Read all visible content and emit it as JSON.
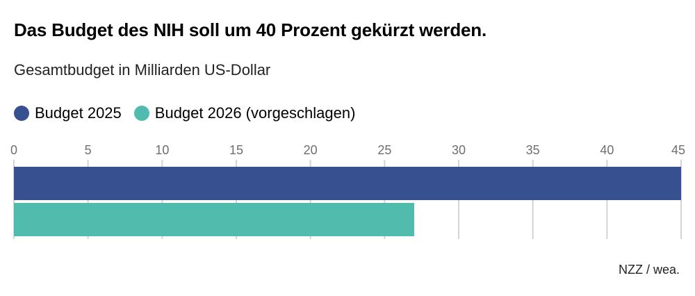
{
  "title": "Das Budget des NIH soll um 40 Prozent gekürzt werden.",
  "subtitle": "Gesamtbudget in Milliarden US-Dollar",
  "source": "NZZ / wea.",
  "chart_data": {
    "type": "bar",
    "orientation": "horizontal",
    "series": [
      {
        "name": "Budget 2025",
        "values": [
          45
        ],
        "color": "#37508f"
      },
      {
        "name": "Budget 2026 (vorgeschlagen)",
        "values": [
          27
        ],
        "color": "#51bcae"
      }
    ],
    "xlim": [
      0,
      45
    ],
    "xticks": [
      "0",
      "5",
      "10",
      "15",
      "20",
      "25",
      "30",
      "35",
      "40",
      "45"
    ],
    "grid": true,
    "legend": "top-left"
  }
}
